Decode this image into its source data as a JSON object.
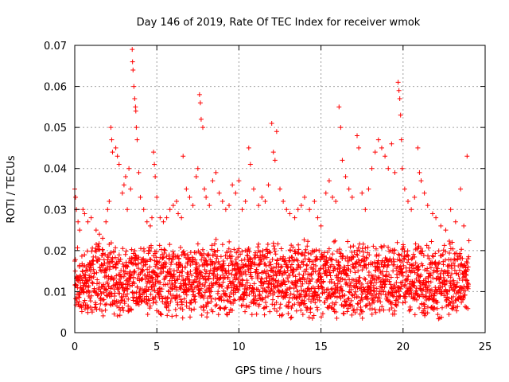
{
  "chart_data": {
    "type": "scatter",
    "title": "Day 146 of 2019, Rate Of TEC Index for receiver wmok",
    "xlabel": "GPS time / hours",
    "ylabel": "ROTI / TECUs",
    "xlim": [
      0,
      25
    ],
    "ylim": [
      0,
      0.07
    ],
    "xticks": [
      0,
      5,
      10,
      15,
      20,
      25
    ],
    "xtick_labels": [
      "0",
      "5",
      "10",
      "15",
      "20",
      "25"
    ],
    "yticks": [
      0,
      0.01,
      0.02,
      0.03,
      0.04,
      0.05,
      0.06,
      0.07
    ],
    "ytick_labels": [
      "0",
      "0.01",
      "0.02",
      "0.03",
      "0.04",
      "0.05",
      "0.06",
      "0.07"
    ],
    "grid": true,
    "marker": "+",
    "marker_color": "#ff0000",
    "series": [
      {
        "name": "ROTI",
        "points": [
          [
            0.0,
            0.035
          ],
          [
            0.05,
            0.033
          ],
          [
            0.1,
            0.03
          ],
          [
            0.2,
            0.027
          ],
          [
            0.3,
            0.025
          ],
          [
            0.5,
            0.03
          ],
          [
            0.6,
            0.029
          ],
          [
            0.8,
            0.027
          ],
          [
            1.0,
            0.028
          ],
          [
            1.3,
            0.025
          ],
          [
            1.5,
            0.024
          ],
          [
            1.7,
            0.023
          ],
          [
            1.9,
            0.027
          ],
          [
            2.0,
            0.03
          ],
          [
            2.1,
            0.032
          ],
          [
            2.2,
            0.05
          ],
          [
            2.25,
            0.047
          ],
          [
            2.3,
            0.044
          ],
          [
            2.5,
            0.045
          ],
          [
            2.6,
            0.043
          ],
          [
            2.7,
            0.041
          ],
          [
            2.9,
            0.034
          ],
          [
            3.0,
            0.036
          ],
          [
            3.1,
            0.038
          ],
          [
            3.2,
            0.03
          ],
          [
            3.3,
            0.04
          ],
          [
            3.4,
            0.035
          ],
          [
            3.5,
            0.069
          ],
          [
            3.52,
            0.066
          ],
          [
            3.55,
            0.064
          ],
          [
            3.6,
            0.06
          ],
          [
            3.65,
            0.057
          ],
          [
            3.7,
            0.055
          ],
          [
            3.72,
            0.054
          ],
          [
            3.75,
            0.05
          ],
          [
            3.8,
            0.047
          ],
          [
            3.9,
            0.039
          ],
          [
            4.0,
            0.033
          ],
          [
            4.2,
            0.03
          ],
          [
            4.4,
            0.027
          ],
          [
            4.6,
            0.026
          ],
          [
            4.7,
            0.028
          ],
          [
            4.8,
            0.044
          ],
          [
            4.85,
            0.041
          ],
          [
            4.9,
            0.038
          ],
          [
            5.0,
            0.033
          ],
          [
            5.2,
            0.028
          ],
          [
            5.4,
            0.027
          ],
          [
            5.6,
            0.028
          ],
          [
            5.8,
            0.03
          ],
          [
            6.0,
            0.031
          ],
          [
            6.2,
            0.032
          ],
          [
            6.3,
            0.029
          ],
          [
            6.5,
            0.028
          ],
          [
            6.6,
            0.043
          ],
          [
            6.8,
            0.035
          ],
          [
            7.0,
            0.033
          ],
          [
            7.2,
            0.031
          ],
          [
            7.4,
            0.038
          ],
          [
            7.5,
            0.04
          ],
          [
            7.6,
            0.058
          ],
          [
            7.65,
            0.056
          ],
          [
            7.7,
            0.052
          ],
          [
            7.8,
            0.05
          ],
          [
            7.9,
            0.035
          ],
          [
            8.0,
            0.033
          ],
          [
            8.2,
            0.031
          ],
          [
            8.4,
            0.037
          ],
          [
            8.6,
            0.039
          ],
          [
            8.8,
            0.034
          ],
          [
            9.0,
            0.032
          ],
          [
            9.2,
            0.03
          ],
          [
            9.4,
            0.031
          ],
          [
            9.6,
            0.036
          ],
          [
            9.8,
            0.034
          ],
          [
            10.0,
            0.037
          ],
          [
            10.2,
            0.03
          ],
          [
            10.4,
            0.032
          ],
          [
            10.6,
            0.045
          ],
          [
            10.7,
            0.041
          ],
          [
            10.9,
            0.035
          ],
          [
            11.2,
            0.031
          ],
          [
            11.4,
            0.033
          ],
          [
            11.6,
            0.032
          ],
          [
            11.8,
            0.036
          ],
          [
            12.0,
            0.051
          ],
          [
            12.1,
            0.044
          ],
          [
            12.2,
            0.042
          ],
          [
            12.3,
            0.049
          ],
          [
            12.5,
            0.035
          ],
          [
            12.7,
            0.032
          ],
          [
            12.9,
            0.03
          ],
          [
            13.1,
            0.029
          ],
          [
            13.4,
            0.028
          ],
          [
            13.6,
            0.03
          ],
          [
            13.8,
            0.031
          ],
          [
            14.0,
            0.033
          ],
          [
            14.3,
            0.03
          ],
          [
            14.6,
            0.032
          ],
          [
            14.8,
            0.028
          ],
          [
            15.0,
            0.026
          ],
          [
            15.3,
            0.034
          ],
          [
            15.5,
            0.037
          ],
          [
            15.7,
            0.033
          ],
          [
            15.9,
            0.032
          ],
          [
            16.1,
            0.055
          ],
          [
            16.2,
            0.05
          ],
          [
            16.3,
            0.042
          ],
          [
            16.5,
            0.038
          ],
          [
            16.7,
            0.035
          ],
          [
            16.9,
            0.033
          ],
          [
            17.2,
            0.048
          ],
          [
            17.3,
            0.045
          ],
          [
            17.5,
            0.034
          ],
          [
            17.7,
            0.03
          ],
          [
            17.9,
            0.035
          ],
          [
            18.1,
            0.04
          ],
          [
            18.3,
            0.044
          ],
          [
            18.5,
            0.047
          ],
          [
            18.7,
            0.045
          ],
          [
            18.9,
            0.043
          ],
          [
            19.1,
            0.04
          ],
          [
            19.3,
            0.046
          ],
          [
            19.5,
            0.039
          ],
          [
            19.7,
            0.061
          ],
          [
            19.75,
            0.059
          ],
          [
            19.8,
            0.057
          ],
          [
            19.85,
            0.053
          ],
          [
            19.9,
            0.047
          ],
          [
            19.95,
            0.04
          ],
          [
            20.1,
            0.035
          ],
          [
            20.3,
            0.032
          ],
          [
            20.5,
            0.03
          ],
          [
            20.7,
            0.033
          ],
          [
            20.9,
            0.045
          ],
          [
            21.0,
            0.039
          ],
          [
            21.1,
            0.037
          ],
          [
            21.3,
            0.034
          ],
          [
            21.5,
            0.031
          ],
          [
            21.8,
            0.029
          ],
          [
            22.0,
            0.028
          ],
          [
            22.3,
            0.026
          ],
          [
            22.6,
            0.025
          ],
          [
            22.9,
            0.03
          ],
          [
            23.2,
            0.027
          ],
          [
            23.5,
            0.035
          ],
          [
            23.7,
            0.026
          ],
          [
            23.9,
            0.043
          ],
          [
            23.95,
            0.018
          ]
        ]
      }
    ],
    "dense_band": {
      "x_range": [
        0,
        24
      ],
      "y_min": 0.003,
      "y_typical_low": 0.006,
      "y_typical_high": 0.02
    }
  }
}
